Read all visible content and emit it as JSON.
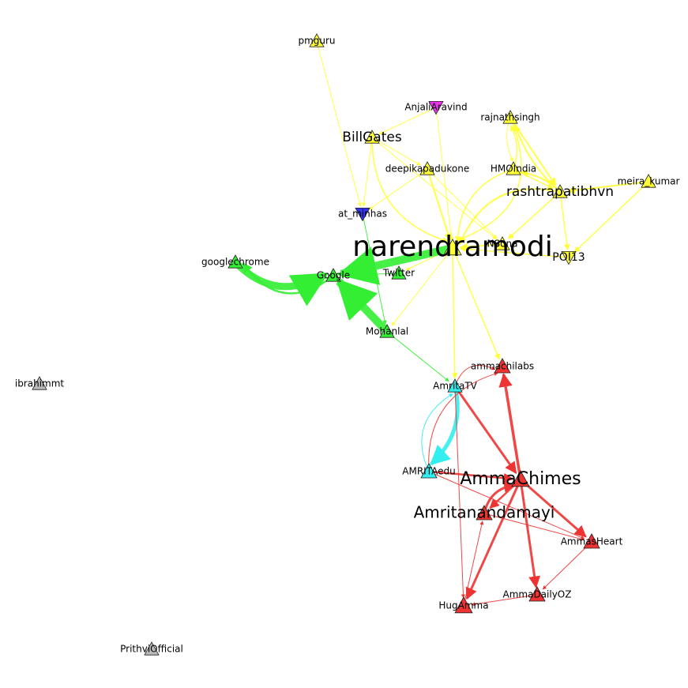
{
  "colors": {
    "yellow": "#ffff33",
    "green": "#33ee33",
    "cyan": "#33eeee",
    "red": "#ee3333",
    "magenta": "#ee33ee",
    "blue": "#3333ee",
    "gray": "#bbbbbb"
  },
  "nodes": [
    {
      "id": "narendramodi",
      "label": "narendramodi",
      "group": "yellow",
      "shape": "triangle-up"
    },
    {
      "id": "pmoindia",
      "label": "pmguru",
      "group": "yellow",
      "shape": "triangle-up"
    },
    {
      "id": "AnjaliAravind",
      "label": "AnjaliAravind",
      "group": "magenta",
      "shape": "triangle-down"
    },
    {
      "id": "rajnathsingh",
      "label": "rajnathsingh",
      "group": "yellow",
      "shape": "triangle-up"
    },
    {
      "id": "BillGates",
      "label": "BillGates",
      "group": "yellow",
      "shape": "triangle-up"
    },
    {
      "id": "deepikapadukone",
      "label": "deepikapadukone",
      "group": "yellow",
      "shape": "triangle-up"
    },
    {
      "id": "HMOIndia",
      "label": "HMOIndia",
      "group": "yellow",
      "shape": "triangle-up"
    },
    {
      "id": "rashtrapatibhvn",
      "label": "rashtrapatibhvn",
      "group": "yellow",
      "shape": "triangle-up"
    },
    {
      "id": "meirakumar",
      "label": "meira_kumar",
      "group": "yellow",
      "shape": "triangle-up"
    },
    {
      "id": "at_minhas",
      "label": "at_minhas",
      "group": "blue",
      "shape": "triangle-down"
    },
    {
      "id": "NSona",
      "label": "NSona",
      "group": "yellow",
      "shape": "triangle-up"
    },
    {
      "id": "POI13",
      "label": "POI13",
      "group": "yellow",
      "shape": "triangle-down"
    },
    {
      "id": "googlechrome",
      "label": "googlechrome",
      "group": "green",
      "shape": "triangle-up"
    },
    {
      "id": "Google",
      "label": "Google",
      "group": "green",
      "shape": "triangle-up"
    },
    {
      "id": "Twitter",
      "label": "Twitter",
      "group": "green",
      "shape": "triangle-up"
    },
    {
      "id": "Mohanlal",
      "label": "Mohanlal",
      "group": "green",
      "shape": "triangle-up"
    },
    {
      "id": "ibrahimmt",
      "label": "ibrahimmt",
      "group": "gray",
      "shape": "triangle-up"
    },
    {
      "id": "ammachilabs",
      "label": "ammachilabs",
      "group": "red",
      "shape": "triangle-up"
    },
    {
      "id": "AmritaTV",
      "label": "AmritaTV",
      "group": "cyan",
      "shape": "triangle-up"
    },
    {
      "id": "AMRITAedu",
      "label": "AMRITAedu",
      "group": "cyan",
      "shape": "triangle-up"
    },
    {
      "id": "AmmaChimes",
      "label": "AmmaChimes",
      "group": "red",
      "shape": "triangle-up"
    },
    {
      "id": "Amritanandamayi",
      "label": "Amritanandamayi",
      "group": "red",
      "shape": "triangle-up"
    },
    {
      "id": "AmmasHeart",
      "label": "AmmasHeart",
      "group": "red",
      "shape": "triangle-up"
    },
    {
      "id": "AmmaDailyOZ",
      "label": "AmmaDailyOZ",
      "group": "red",
      "shape": "triangle-up"
    },
    {
      "id": "HugAmma",
      "label": "HugAmma",
      "group": "red",
      "shape": "triangle-up"
    },
    {
      "id": "PrithviOfficial",
      "label": "PrithviOfficial",
      "group": "gray",
      "shape": "triangle-up"
    }
  ],
  "edges": [
    {
      "source": "pmoindia",
      "target": "at_minhas",
      "group": "yellow",
      "weight": 1
    },
    {
      "source": "AnjaliAravind",
      "target": "BillGates",
      "group": "yellow",
      "weight": 1
    },
    {
      "source": "BillGates",
      "target": "narendramodi",
      "group": "yellow",
      "weight": 1.5
    },
    {
      "source": "BillGates",
      "target": "deepikapadukone",
      "group": "yellow",
      "weight": 1
    },
    {
      "source": "BillGates",
      "target": "NSona",
      "group": "yellow",
      "weight": 1
    },
    {
      "source": "BillGates",
      "target": "at_minhas",
      "group": "yellow",
      "weight": 1
    },
    {
      "source": "AnjaliAravind",
      "target": "narendramodi",
      "group": "yellow",
      "weight": 1
    },
    {
      "source": "deepikapadukone",
      "target": "narendramodi",
      "group": "yellow",
      "weight": 2
    },
    {
      "source": "deepikapadukone",
      "target": "NSona",
      "group": "yellow",
      "weight": 1
    },
    {
      "source": "deepikapadukone",
      "target": "at_minhas",
      "group": "yellow",
      "weight": 1
    },
    {
      "source": "rajnathsingh",
      "target": "narendramodi",
      "group": "yellow",
      "weight": 1.5
    },
    {
      "source": "rajnathsingh",
      "target": "HMOIndia",
      "group": "yellow",
      "weight": 1
    },
    {
      "source": "rajnathsingh",
      "target": "rashtrapatibhvn",
      "group": "yellow",
      "weight": 2
    },
    {
      "source": "HMOIndia",
      "target": "narendramodi",
      "group": "yellow",
      "weight": 1.5
    },
    {
      "source": "HMOIndia",
      "target": "rashtrapatibhvn",
      "group": "yellow",
      "weight": 1.5
    },
    {
      "source": "HMOIndia",
      "target": "rajnathsingh",
      "group": "yellow",
      "weight": 1.5
    },
    {
      "source": "rashtrapatibhvn",
      "target": "narendramodi",
      "group": "yellow",
      "weight": 2
    },
    {
      "source": "rashtrapatibhvn",
      "target": "HMOIndia",
      "group": "yellow",
      "weight": 2
    },
    {
      "source": "rashtrapatibhvn",
      "target": "rajnathsingh",
      "group": "yellow",
      "weight": 2
    },
    {
      "source": "rashtrapatibhvn",
      "target": "NSona",
      "group": "yellow",
      "weight": 1.5
    },
    {
      "source": "rashtrapatibhvn",
      "target": "POI13",
      "group": "yellow",
      "weight": 1.5
    },
    {
      "source": "meirakumar",
      "target": "rashtrapatibhvn",
      "group": "yellow",
      "weight": 2
    },
    {
      "source": "meirakumar",
      "target": "POI13",
      "group": "yellow",
      "weight": 1.5
    },
    {
      "source": "NSona",
      "target": "narendramodi",
      "group": "yellow",
      "weight": 2
    },
    {
      "source": "POI13",
      "target": "narendramodi",
      "group": "yellow",
      "weight": 1.5
    },
    {
      "source": "narendramodi",
      "target": "Mohanlal",
      "group": "yellow",
      "weight": 1
    },
    {
      "source": "narendramodi",
      "target": "ammachilabs",
      "group": "yellow",
      "weight": 1.5
    },
    {
      "source": "narendramodi",
      "target": "AmritaTV",
      "group": "yellow",
      "weight": 1.5
    },
    {
      "source": "narendramodi",
      "target": "Twitter",
      "group": "yellow",
      "weight": 1
    },
    {
      "source": "narendramodi",
      "target": "Google",
      "group": "green",
      "weight": 10
    },
    {
      "source": "Mohanlal",
      "target": "Google",
      "group": "green",
      "weight": 10
    },
    {
      "source": "googlechrome",
      "target": "Google",
      "group": "green",
      "weight": 9
    },
    {
      "source": "Google",
      "target": "googlechrome",
      "group": "green",
      "weight": 2.5
    },
    {
      "source": "Twitter",
      "target": "Google",
      "group": "green",
      "weight": 1
    },
    {
      "source": "at_minhas",
      "target": "Mohanlal",
      "group": "green",
      "weight": 1
    },
    {
      "source": "Mohanlal",
      "target": "AmritaTV",
      "group": "green",
      "weight": 1
    },
    {
      "source": "AmritaTV",
      "target": "AMRITAedu",
      "group": "cyan",
      "weight": 5
    },
    {
      "source": "AMRITAedu",
      "target": "AmritaTV",
      "group": "cyan",
      "weight": 1
    },
    {
      "source": "AmritaTV",
      "target": "AmmaChimes",
      "group": "red",
      "weight": 3
    },
    {
      "source": "AmritaTV",
      "target": "HugAmma",
      "group": "red",
      "weight": 1
    },
    {
      "source": "AmritaTV",
      "target": "ammachilabs",
      "group": "red",
      "weight": 1
    },
    {
      "source": "AMRITAedu",
      "target": "AmmaChimes",
      "group": "red",
      "weight": 2.5
    },
    {
      "source": "AMRITAedu",
      "target": "AmmasHeart",
      "group": "red",
      "weight": 1
    },
    {
      "source": "AMRITAedu",
      "target": "ammachilabs",
      "group": "red",
      "weight": 1
    },
    {
      "source": "AmmaChimes",
      "target": "ammachilabs",
      "group": "red",
      "weight": 3.5
    },
    {
      "source": "AmmaChimes",
      "target": "Amritanandamayi",
      "group": "red",
      "weight": 2.5
    },
    {
      "source": "AmmaChimes",
      "target": "AmmasHeart",
      "group": "red",
      "weight": 3
    },
    {
      "source": "AmmaChimes",
      "target": "AmmaDailyOZ",
      "group": "red",
      "weight": 3
    },
    {
      "source": "AmmaChimes",
      "target": "HugAmma",
      "group": "red",
      "weight": 3
    },
    {
      "source": "Amritanandamayi",
      "target": "AmmaChimes",
      "group": "red",
      "weight": 3
    },
    {
      "source": "Amritanandamayi",
      "target": "AmmasHeart",
      "group": "red",
      "weight": 1
    },
    {
      "source": "AmmasHeart",
      "target": "AmmaDailyOZ",
      "group": "red",
      "weight": 1
    },
    {
      "source": "AmmaDailyOZ",
      "target": "HugAmma",
      "group": "red",
      "weight": 1
    },
    {
      "source": "HugAmma",
      "target": "Amritanandamayi",
      "group": "red",
      "weight": 1
    }
  ]
}
